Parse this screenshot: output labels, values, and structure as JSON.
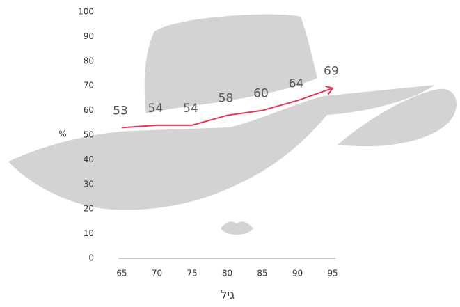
{
  "chart_data": {
    "type": "line",
    "x": [
      65,
      70,
      75,
      80,
      85,
      90,
      95
    ],
    "values": [
      53,
      54,
      54,
      58,
      60,
      64,
      69
    ],
    "color": "#e8345a",
    "xlim": [
      65,
      95
    ],
    "xticks": [
      65,
      70,
      75,
      80,
      85,
      90,
      95
    ],
    "ylim": [
      0,
      100
    ],
    "yticks": [
      0,
      10,
      20,
      30,
      40,
      50,
      60,
      70,
      80,
      90,
      100
    ],
    "y_label": "%",
    "x_label": "גיל"
  }
}
